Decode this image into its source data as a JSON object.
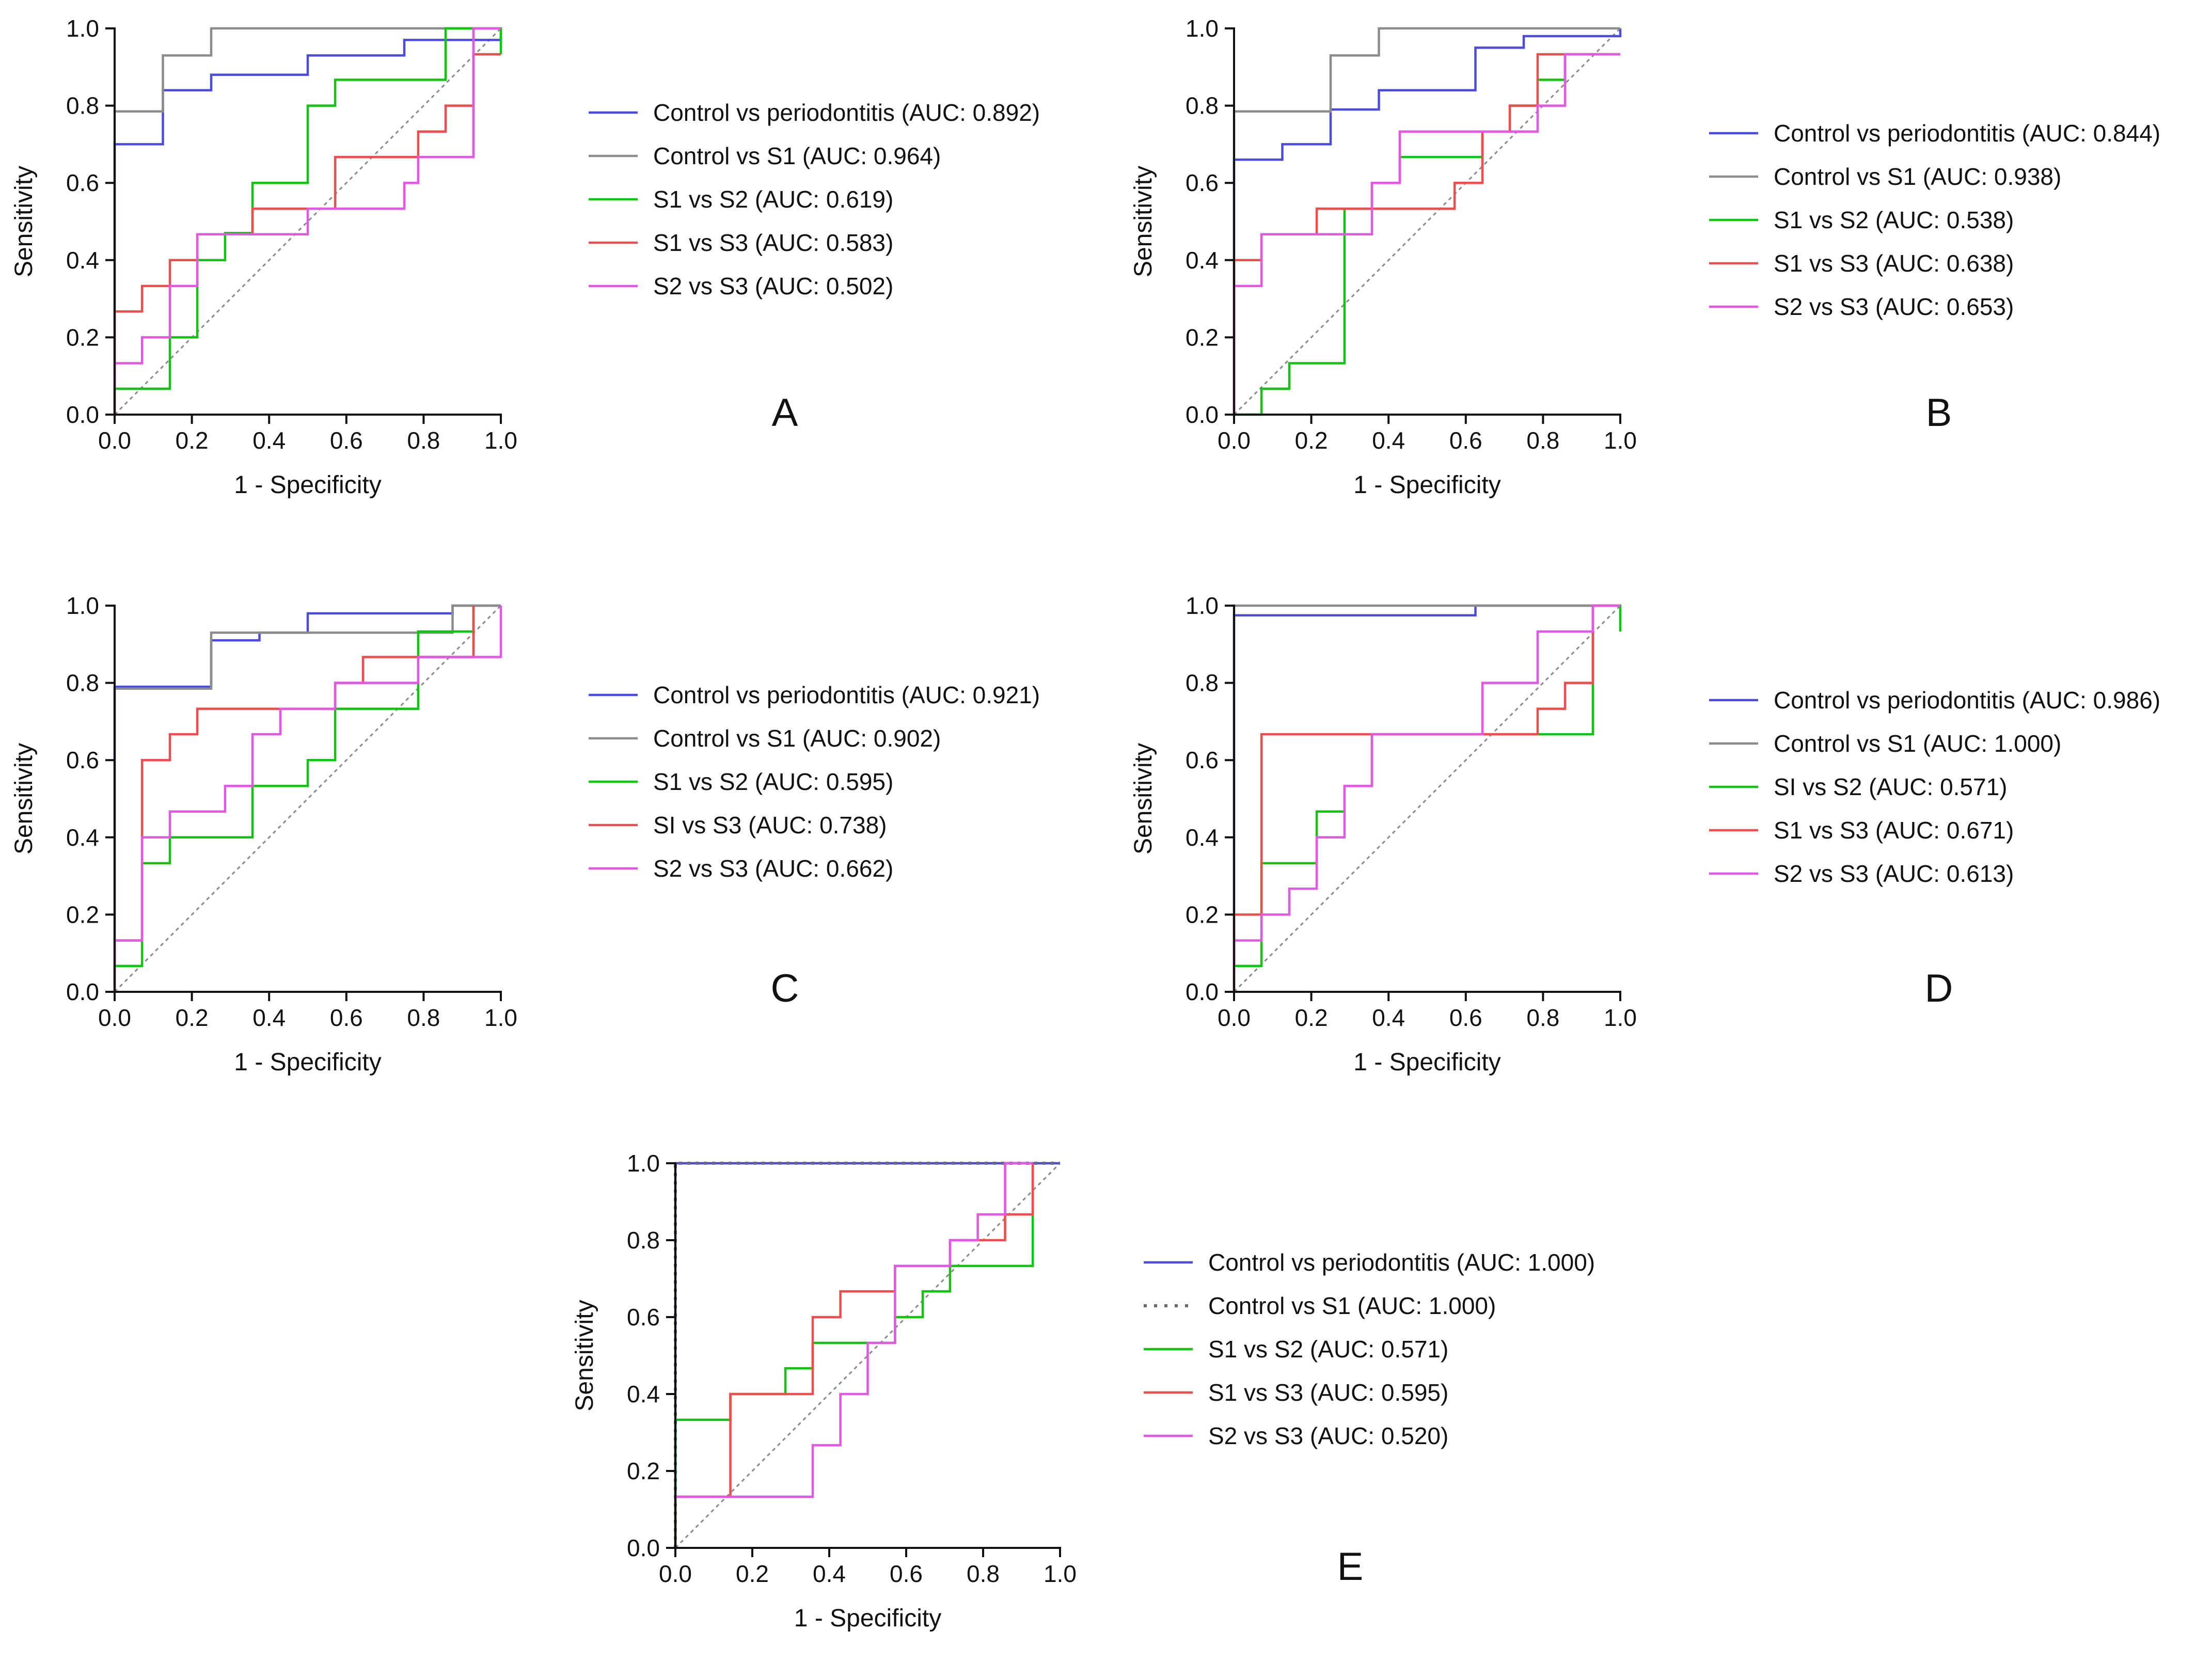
{
  "figure": {
    "background": "#ffffff"
  },
  "colors": {
    "Control vs periodontitis": "#4b4bdc",
    "Control vs S1": "#8c8c8c",
    "S1 vs S2": "#12c412",
    "S1 vs S3": "#ee4d4d",
    "S2 vs S3": "#e456e4",
    "reference": "#8a8a8a"
  },
  "chart_data": [
    {
      "panel": "A",
      "type": "line",
      "title": "",
      "xlabel": "1 - Specificity",
      "ylabel": "Sensitivity",
      "xlim": [
        0,
        1
      ],
      "ylim": [
        0,
        1
      ],
      "xticks": [
        "0.0",
        "0.2",
        "0.4",
        "0.6",
        "0.8",
        "1.0"
      ],
      "yticks": [
        "0.0",
        "0.2",
        "0.4",
        "0.6",
        "0.8",
        "1.0"
      ],
      "grid": false,
      "legend_position": "right",
      "series": [
        {
          "key": "Control vs periodontitis",
          "name": "Control vs periodontitis (AUC: 0.892)",
          "style": "solid",
          "x": [
            0,
            0,
            0.125,
            0.125,
            0.25,
            0.25,
            0.5,
            0.5,
            0.75,
            0.75,
            1,
            1
          ],
          "y": [
            0,
            0.7,
            0.7,
            0.84,
            0.84,
            0.88,
            0.88,
            0.93,
            0.93,
            0.97,
            0.97,
            1.0
          ]
        },
        {
          "key": "Control vs S1",
          "name": "Control vs S1 (AUC: 0.964)",
          "style": "solid",
          "x": [
            0,
            0,
            0.125,
            0.125,
            0.25,
            0.25,
            1
          ],
          "y": [
            0,
            0.785,
            0.785,
            0.93,
            0.93,
            1.0,
            1.0
          ]
        },
        {
          "key": "S1 vs S2",
          "name": "S1 vs S2 (AUC: 0.619)",
          "style": "solid",
          "x": [
            0,
            0,
            0.143,
            0.143,
            0.214,
            0.214,
            0.286,
            0.286,
            0.357,
            0.357,
            0.5,
            0.5,
            0.571,
            0.571,
            0.857,
            0.857,
            1,
            1
          ],
          "y": [
            0,
            0.067,
            0.067,
            0.2,
            0.2,
            0.4,
            0.4,
            0.47,
            0.47,
            0.6,
            0.6,
            0.8,
            0.8,
            0.867,
            0.867,
            1.0,
            1.0,
            0.933
          ]
        },
        {
          "key": "S1 vs S3",
          "name": "S1 vs S3 (AUC: 0.583)",
          "style": "solid",
          "x": [
            0,
            0,
            0.071,
            0.071,
            0.143,
            0.143,
            0.214,
            0.214,
            0.357,
            0.357,
            0.571,
            0.571,
            0.786,
            0.786,
            0.857,
            0.857,
            0.929,
            0.929,
            1
          ],
          "y": [
            0,
            0.267,
            0.267,
            0.333,
            0.333,
            0.4,
            0.4,
            0.467,
            0.467,
            0.533,
            0.533,
            0.667,
            0.667,
            0.733,
            0.733,
            0.8,
            0.8,
            0.933,
            0.933
          ]
        },
        {
          "key": "S2 vs S3",
          "name": "S2 vs S3 (AUC: 0.502)",
          "style": "solid",
          "x": [
            0,
            0,
            0.071,
            0.071,
            0.143,
            0.143,
            0.214,
            0.214,
            0.5,
            0.5,
            0.75,
            0.75,
            0.786,
            0.786,
            0.929,
            0.929,
            1
          ],
          "y": [
            0,
            0.133,
            0.133,
            0.2,
            0.2,
            0.333,
            0.333,
            0.467,
            0.467,
            0.533,
            0.533,
            0.6,
            0.6,
            0.667,
            0.667,
            1.0,
            1.0
          ]
        }
      ]
    },
    {
      "panel": "B",
      "type": "line",
      "title": "",
      "xlabel": "1 - Specificity",
      "ylabel": "Sensitivity",
      "xlim": [
        0,
        1
      ],
      "ylim": [
        0,
        1
      ],
      "xticks": [
        "0.0",
        "0.2",
        "0.4",
        "0.6",
        "0.8",
        "1.0"
      ],
      "yticks": [
        "0.0",
        "0.2",
        "0.4",
        "0.6",
        "0.8",
        "1.0"
      ],
      "grid": false,
      "legend_position": "right",
      "series": [
        {
          "key": "Control vs periodontitis",
          "name": "Control vs periodontitis (AUC: 0.844)",
          "style": "solid",
          "x": [
            0,
            0,
            0.125,
            0.125,
            0.25,
            0.25,
            0.375,
            0.375,
            0.625,
            0.625,
            0.75,
            0.75,
            1,
            1
          ],
          "y": [
            0,
            0.66,
            0.66,
            0.7,
            0.7,
            0.79,
            0.79,
            0.84,
            0.84,
            0.95,
            0.95,
            0.98,
            0.98,
            1.0
          ]
        },
        {
          "key": "Control vs S1",
          "name": "Control vs S1 (AUC: 0.938)",
          "style": "solid",
          "x": [
            0,
            0,
            0.25,
            0.25,
            0.375,
            0.375,
            1
          ],
          "y": [
            0,
            0.785,
            0.785,
            0.93,
            0.93,
            1.0,
            1.0
          ]
        },
        {
          "key": "S1 vs S2",
          "name": "S1 vs S2 (AUC: 0.538)",
          "style": "solid",
          "x": [
            0,
            0.071,
            0.071,
            0.143,
            0.143,
            0.286,
            0.286,
            0.357,
            0.357,
            0.429,
            0.429,
            0.5,
            0.5,
            0.643,
            0.643,
            0.714,
            0.714,
            0.786,
            0.786,
            0.857,
            0.857,
            1
          ],
          "y": [
            0,
            0,
            0.067,
            0.067,
            0.133,
            0.133,
            0.533,
            0.533,
            0.6,
            0.6,
            0.667,
            0.667,
            0.667,
            0.667,
            0.733,
            0.733,
            0.8,
            0.8,
            0.867,
            0.867,
            0.933,
            0.933
          ]
        },
        {
          "key": "S1 vs S3",
          "name": "S1 vs  S3 (AUC: 0.638)",
          "style": "solid",
          "x": [
            0,
            0,
            0.071,
            0.071,
            0.214,
            0.214,
            0.571,
            0.571,
            0.643,
            0.643,
            0.714,
            0.714,
            0.786,
            0.786,
            1
          ],
          "y": [
            0,
            0.4,
            0.4,
            0.467,
            0.467,
            0.533,
            0.533,
            0.6,
            0.6,
            0.733,
            0.733,
            0.8,
            0.8,
            0.933,
            0.933
          ]
        },
        {
          "key": "S2 vs S3",
          "name": "S2 vs  S3 (AUC: 0.653)",
          "style": "solid",
          "x": [
            0,
            0,
            0.071,
            0.071,
            0.357,
            0.357,
            0.429,
            0.429,
            0.786,
            0.786,
            0.857,
            0.857,
            1
          ],
          "y": [
            0,
            0.333,
            0.333,
            0.467,
            0.467,
            0.6,
            0.6,
            0.733,
            0.733,
            0.8,
            0.8,
            0.933,
            0.933
          ]
        }
      ]
    },
    {
      "panel": "C",
      "type": "line",
      "title": "",
      "xlabel": "1 - Specificity",
      "ylabel": "Sensitivity",
      "xlim": [
        0,
        1
      ],
      "ylim": [
        0,
        1
      ],
      "xticks": [
        "0.0",
        "0.2",
        "0.4",
        "0.6",
        "0.8",
        "1.0"
      ],
      "yticks": [
        "0.0",
        "0.2",
        "0.4",
        "0.6",
        "0.8",
        "1.0"
      ],
      "grid": false,
      "legend_position": "right",
      "series": [
        {
          "key": "Control vs periodontitis",
          "name": "Control vs periodontitis (AUC: 0.921)",
          "style": "solid",
          "x": [
            0,
            0,
            0.25,
            0.25,
            0.375,
            0.375,
            0.5,
            0.5,
            0.875,
            0.875,
            1
          ],
          "y": [
            0,
            0.79,
            0.79,
            0.91,
            0.91,
            0.93,
            0.93,
            0.98,
            0.98,
            1.0,
            1.0
          ]
        },
        {
          "key": "Control vs S1",
          "name": "Control vs S1 (AUC: 0.902)",
          "style": "solid",
          "x": [
            0,
            0,
            0.25,
            0.25,
            0.875,
            0.875,
            1
          ],
          "y": [
            0,
            0.785,
            0.785,
            0.93,
            0.93,
            1.0,
            1.0
          ]
        },
        {
          "key": "S1 vs S2",
          "name": "S1 vs S2 (AUC: 0.595)",
          "style": "solid",
          "x": [
            0,
            0,
            0.071,
            0.071,
            0.143,
            0.143,
            0.357,
            0.357,
            0.5,
            0.5,
            0.571,
            0.571,
            0.786,
            0.786,
            0.929,
            0.929
          ],
          "y": [
            0,
            0.067,
            0.067,
            0.333,
            0.333,
            0.4,
            0.4,
            0.533,
            0.533,
            0.6,
            0.6,
            0.733,
            0.733,
            0.933,
            0.933,
            1.0
          ]
        },
        {
          "key": "S1 vs S3",
          "name": "SI vs S3 (AUC: 0.738)",
          "style": "solid",
          "x": [
            0,
            0,
            0.071,
            0.071,
            0.143,
            0.143,
            0.214,
            0.214,
            0.571,
            0.571,
            0.643,
            0.643,
            0.929,
            0.929
          ],
          "y": [
            0,
            0.133,
            0.133,
            0.6,
            0.6,
            0.667,
            0.667,
            0.733,
            0.733,
            0.8,
            0.8,
            0.867,
            0.867,
            1.0
          ]
        },
        {
          "key": "S2 vs S3",
          "name": "S2 vs S3 (AUC: 0.662)",
          "style": "solid",
          "x": [
            0,
            0,
            0.071,
            0.071,
            0.143,
            0.143,
            0.286,
            0.286,
            0.357,
            0.357,
            0.429,
            0.429,
            0.571,
            0.571,
            0.786,
            0.786,
            1,
            1
          ],
          "y": [
            0,
            0.133,
            0.133,
            0.4,
            0.4,
            0.467,
            0.467,
            0.533,
            0.533,
            0.667,
            0.667,
            0.733,
            0.733,
            0.8,
            0.8,
            0.867,
            0.867,
            1.0
          ]
        }
      ]
    },
    {
      "panel": "D",
      "type": "line",
      "title": "",
      "xlabel": "1 - Specificity",
      "ylabel": "Sensitivity",
      "xlim": [
        0,
        1
      ],
      "ylim": [
        0,
        1
      ],
      "xticks": [
        "0.0",
        "0.2",
        "0.4",
        "0.6",
        "0.8",
        "1.0"
      ],
      "yticks": [
        "0.0",
        "0.2",
        "0.4",
        "0.6",
        "0.8",
        "1.0"
      ],
      "grid": false,
      "legend_position": "right",
      "series": [
        {
          "key": "Control vs periodontitis",
          "name": "Control vs periodontitis (AUC: 0.986)",
          "style": "solid",
          "x": [
            0,
            0,
            0.625,
            0.625,
            1
          ],
          "y": [
            0,
            0.975,
            0.975,
            1.0,
            1.0
          ]
        },
        {
          "key": "Control vs S1",
          "name": "Control vs S1 (AUC: 1.000)",
          "style": "solid",
          "x": [
            0,
            0,
            1
          ],
          "y": [
            0,
            1.0,
            1.0
          ]
        },
        {
          "key": "S1 vs S2",
          "name": "SI vs S2 (AUC: 0.571)",
          "style": "solid",
          "x": [
            0,
            0,
            0.071,
            0.071,
            0.214,
            0.214,
            0.286,
            0.286,
            0.357,
            0.357,
            0.929,
            0.929,
            1,
            1
          ],
          "y": [
            0,
            0.067,
            0.067,
            0.333,
            0.333,
            0.467,
            0.467,
            0.533,
            0.533,
            0.667,
            0.667,
            1.0,
            1.0,
            0.933
          ]
        },
        {
          "key": "S1 vs S3",
          "name": "S1 vs S3 (AUC: 0.671)",
          "style": "solid",
          "x": [
            0,
            0,
            0.071,
            0.071,
            0.786,
            0.786,
            0.857,
            0.857,
            0.929,
            0.929,
            1
          ],
          "y": [
            0,
            0.2,
            0.2,
            0.667,
            0.667,
            0.733,
            0.733,
            0.8,
            0.8,
            1.0,
            1.0
          ]
        },
        {
          "key": "S2 vs S3",
          "name": "S2 vs S3 (AUC: 0.613)",
          "style": "solid",
          "x": [
            0,
            0,
            0.071,
            0.071,
            0.143,
            0.143,
            0.214,
            0.214,
            0.286,
            0.286,
            0.357,
            0.357,
            0.643,
            0.643,
            0.786,
            0.786,
            0.929,
            0.929,
            1
          ],
          "y": [
            0,
            0.133,
            0.133,
            0.2,
            0.2,
            0.267,
            0.267,
            0.4,
            0.4,
            0.533,
            0.533,
            0.667,
            0.667,
            0.8,
            0.8,
            0.933,
            0.933,
            1.0,
            1.0
          ]
        }
      ]
    },
    {
      "panel": "E",
      "type": "line",
      "title": "",
      "xlabel": "1 - Specificity",
      "ylabel": "Sensitivity",
      "xlim": [
        0,
        1
      ],
      "ylim": [
        0,
        1
      ],
      "xticks": [
        "0.0",
        "0.2",
        "0.4",
        "0.6",
        "0.8",
        "1.0"
      ],
      "yticks": [
        "0.0",
        "0.2",
        "0.4",
        "0.6",
        "0.8",
        "1.0"
      ],
      "grid": false,
      "legend_position": "right",
      "series": [
        {
          "key": "Control vs periodontitis",
          "name": "Control vs periodontitis (AUC: 1.000)",
          "style": "solid",
          "x": [
            0,
            0,
            1
          ],
          "y": [
            0,
            1.0,
            1.0
          ]
        },
        {
          "key": "Control vs S1",
          "name": "Control vs S1 (AUC: 1.000)",
          "style": "dotted",
          "x": [
            0,
            0,
            1
          ],
          "y": [
            0,
            1.0,
            1.0
          ]
        },
        {
          "key": "S1 vs S2",
          "name": "S1 vs S2 (AUC: 0.571)",
          "style": "solid",
          "x": [
            0,
            0,
            0.143,
            0.143,
            0.286,
            0.286,
            0.357,
            0.357,
            0.571,
            0.571,
            0.643,
            0.643,
            0.714,
            0.714,
            0.929,
            0.929
          ],
          "y": [
            0,
            0.333,
            0.333,
            0.4,
            0.4,
            0.467,
            0.467,
            0.533,
            0.533,
            0.6,
            0.6,
            0.667,
            0.667,
            0.733,
            0.733,
            1.0
          ]
        },
        {
          "key": "S1 vs S3",
          "name": "S1 vs  S3 (AUC: 0.595)",
          "style": "solid",
          "x": [
            0,
            0,
            0.143,
            0.143,
            0.357,
            0.357,
            0.429,
            0.429,
            0.571,
            0.571,
            0.714,
            0.714,
            0.857,
            0.857,
            0.929,
            0.929
          ],
          "y": [
            0,
            0.133,
            0.133,
            0.4,
            0.4,
            0.6,
            0.6,
            0.667,
            0.667,
            0.733,
            0.733,
            0.8,
            0.8,
            0.867,
            0.867,
            1.0
          ]
        },
        {
          "key": "S2 vs S3",
          "name": "S2 vs  S3 (AUC: 0.520)",
          "style": "solid",
          "x": [
            0,
            0.071,
            0.071,
            0.357,
            0.357,
            0.429,
            0.429,
            0.5,
            0.5,
            0.571,
            0.571,
            0.714,
            0.714,
            0.786,
            0.786,
            0.857,
            0.857,
            0.929
          ],
          "y": [
            0.133,
            0.133,
            0.133,
            0.133,
            0.267,
            0.267,
            0.4,
            0.4,
            0.533,
            0.533,
            0.733,
            0.733,
            0.8,
            0.8,
            0.867,
            0.867,
            1.0,
            1.0
          ]
        }
      ]
    }
  ]
}
